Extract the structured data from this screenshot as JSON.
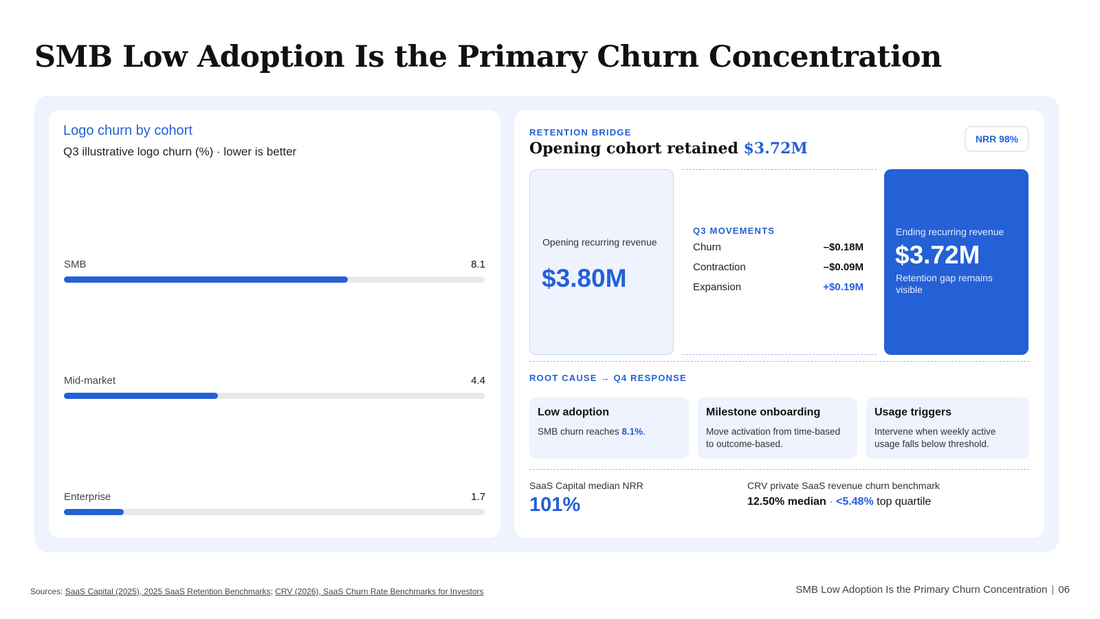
{
  "page": {
    "title": "SMB Low Adoption Is the Primary Churn Concentration",
    "footer_title": "SMB Low Adoption Is the Primary Churn Concentration",
    "page_number": "06",
    "footer_separator": "|",
    "sources_prefix": "Sources:",
    "source_1": "SaaS Capital (2025), 2025 SaaS Retention Benchmarks",
    "source_sep": ";",
    "source_2": "CRV (2026), SaaS Churn Rate Benchmarks for Investors"
  },
  "chart": {
    "title": "Logo churn by cohort",
    "subtitle": "Q3 illustrative logo churn (%) · lower is better"
  },
  "chart_data": {
    "type": "bar",
    "orientation": "horizontal",
    "categories": [
      "SMB",
      "Mid-market",
      "Enterprise"
    ],
    "values": [
      8.1,
      4.4,
      1.7
    ],
    "value_labels": [
      "8.1",
      "4.4",
      "1.7"
    ],
    "xlim": [
      0,
      12
    ],
    "color": "#2460d6",
    "title": "Logo churn by cohort",
    "subtitle": "Q3 illustrative logo churn (%) · lower is better",
    "grid": false
  },
  "retention": {
    "kicker": "RETENTION BRIDGE",
    "title_prefix": "Opening cohort retained",
    "title_value": "$3.72M",
    "nrr_badge": "NRR 98%",
    "opening_label": "Opening recurring revenue",
    "opening_value": "$3.80M",
    "movements_kicker": "Q3 MOVEMENTS",
    "movements": [
      {
        "label": "Churn",
        "amount": "–$0.18M"
      },
      {
        "label": "Contraction",
        "amount": "–$0.09M"
      },
      {
        "label": "Expansion",
        "amount": "+$0.19M"
      }
    ],
    "ending_label": "Ending recurring revenue",
    "ending_value": "$3.72M",
    "ending_note": "Retention gap remains visible"
  },
  "root_cause": {
    "kicker": "ROOT CAUSE → Q4 RESPONSE",
    "cards": [
      {
        "heading": "Low adoption",
        "body_prefix": "SMB churn reaches",
        "body_highlight": "8.1%",
        "body_suffix": "."
      },
      {
        "heading": "Milestone onboarding",
        "body": "Move activation from time-based to outcome-based."
      },
      {
        "heading": "Usage triggers",
        "body": "Intervene when weekly active usage falls below threshold."
      }
    ]
  },
  "benchmarks": {
    "saas_capital_label": "SaaS Capital median NRR",
    "saas_capital_value": "101%",
    "crv_label": "CRV private SaaS revenue churn benchmark",
    "crv_median": "12.50% median",
    "crv_sep": "·",
    "crv_top": "<5.48%",
    "crv_top_suffix": "top quartile"
  },
  "colors": {
    "accent": "#2460d6",
    "frame": "#eef3fd",
    "track": "#e9e9ec"
  }
}
